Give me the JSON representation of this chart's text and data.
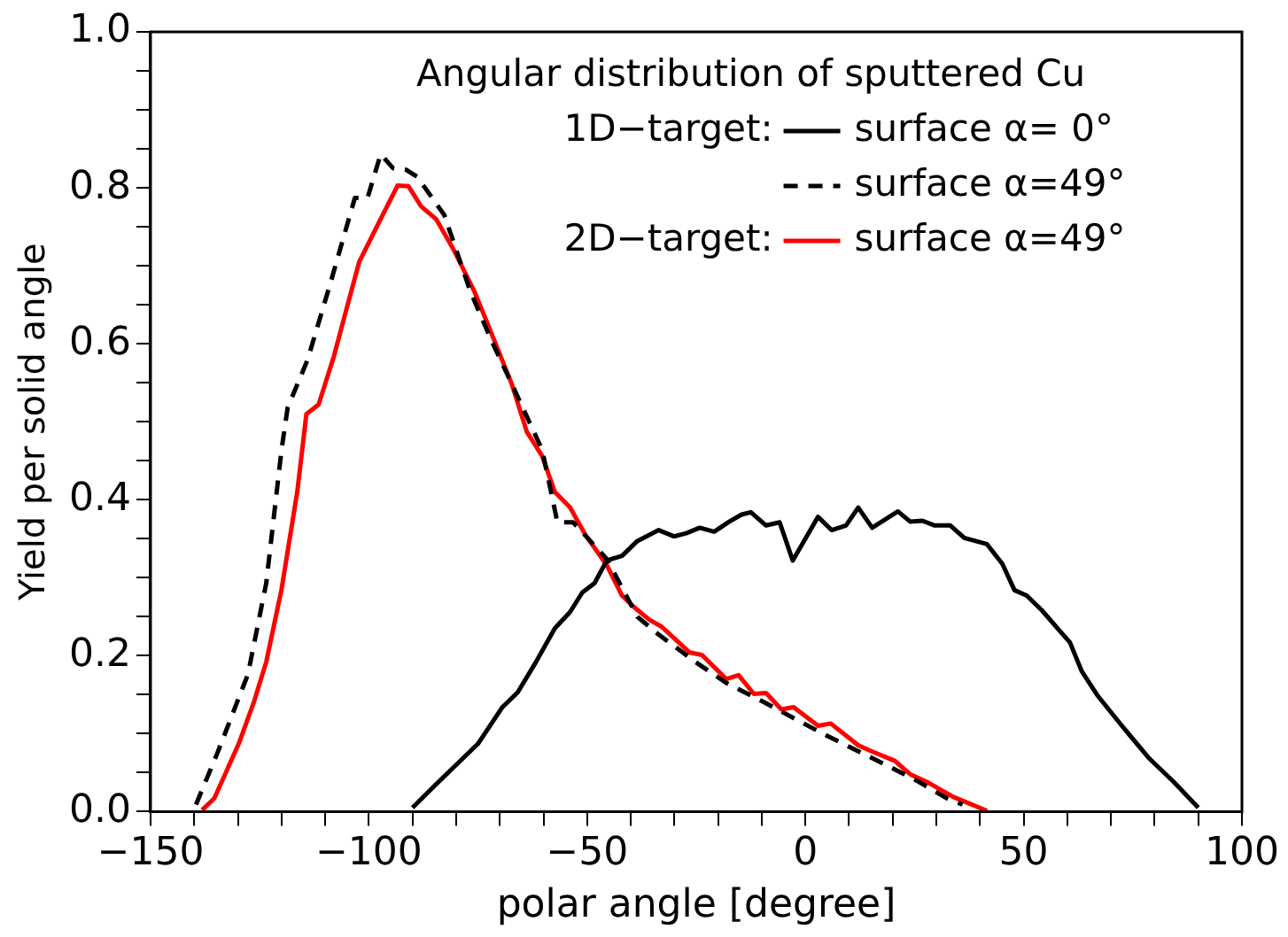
{
  "chart_data": {
    "type": "line",
    "title": "Angular distribution of sputtered Cu",
    "xlabel": "polar angle [degree]",
    "ylabel": "Yield per solid angle",
    "annotations": [
      "1D−target:",
      "2D−target:"
    ],
    "legend": "top right",
    "grid": false,
    "marker": "none",
    "xlim": [
      -150,
      100
    ],
    "xticks": [
      -150,
      {
        "value": -140,
        "label": null
      },
      {
        "value": -130,
        "label": null
      },
      {
        "value": -120,
        "label": null
      },
      {
        "value": -110,
        "label": null
      },
      -100,
      {
        "value": -90,
        "label": null
      },
      {
        "value": -80,
        "label": null
      },
      {
        "value": -70,
        "label": null
      },
      {
        "value": -60,
        "label": null
      },
      -50,
      {
        "value": -40,
        "label": null
      },
      {
        "value": -30,
        "label": null
      },
      {
        "value": -20,
        "label": null
      },
      {
        "value": -10,
        "label": null
      },
      0,
      {
        "value": 10,
        "label": null
      },
      {
        "value": 20,
        "label": null
      },
      {
        "value": 30,
        "label": null
      },
      {
        "value": 40,
        "label": null
      },
      50,
      {
        "value": 60,
        "label": null
      },
      {
        "value": 70,
        "label": null
      },
      {
        "value": 80,
        "label": null
      },
      {
        "value": 90,
        "label": null
      },
      100
    ],
    "ylim": [
      0,
      1
    ],
    "yticks": [
      {
        "value": 0,
        "label": "0.0"
      },
      {
        "value": 0.05,
        "label": null
      },
      {
        "value": 0.1,
        "label": null
      },
      {
        "value": 0.15,
        "label": null
      },
      {
        "value": 0.2,
        "label": "0.2"
      },
      {
        "value": 0.25,
        "label": null
      },
      {
        "value": 0.3,
        "label": null
      },
      {
        "value": 0.35,
        "label": null
      },
      {
        "value": 0.4,
        "label": "0.4"
      },
      {
        "value": 0.45,
        "label": null
      },
      {
        "value": 0.5,
        "label": null
      },
      {
        "value": 0.55,
        "label": null
      },
      {
        "value": 0.6,
        "label": "0.6"
      },
      {
        "value": 0.65,
        "label": null
      },
      {
        "value": 0.7,
        "label": null
      },
      {
        "value": 0.75,
        "label": null
      },
      {
        "value": 0.8,
        "label": "0.8"
      },
      {
        "value": 0.85,
        "label": null
      },
      {
        "value": 0.9,
        "label": null
      },
      {
        "value": 0.95,
        "label": null
      },
      {
        "value": 1,
        "label": "1.0"
      }
    ],
    "series": [
      {
        "name": "surface α= 0°",
        "color": "#000000",
        "line_style": "solid",
        "x": [
          -90,
          -84.8,
          -78.5,
          -75,
          -69.4,
          -65.9,
          -61.7,
          -57.4,
          -53.9,
          -51.1,
          -48.3,
          -45.5,
          -42,
          -38.5,
          -33.6,
          -30.1,
          -27.3,
          -24.2,
          -20.9,
          -17.4,
          -14.6,
          -12.5,
          -9,
          -5.9,
          -2.9,
          2.9,
          6,
          9.3,
          12.1,
          15.3,
          21.2,
          24,
          26.8,
          29.6,
          33.2,
          36.4,
          41.6,
          45.1,
          47.9,
          50.7,
          54.2,
          58.4,
          60.6,
          63.3,
          66.9,
          72.5,
          78.8,
          84.4,
          90
        ],
        "values": [
          0.005,
          0.034,
          0.068,
          0.087,
          0.134,
          0.153,
          0.192,
          0.235,
          0.256,
          0.281,
          0.293,
          0.322,
          0.328,
          0.347,
          0.361,
          0.353,
          0.357,
          0.364,
          0.359,
          0.372,
          0.381,
          0.384,
          0.367,
          0.371,
          0.322,
          0.378,
          0.361,
          0.367,
          0.39,
          0.364,
          0.385,
          0.372,
          0.373,
          0.367,
          0.367,
          0.351,
          0.343,
          0.318,
          0.284,
          0.277,
          0.258,
          0.231,
          0.217,
          0.18,
          0.149,
          0.11,
          0.068,
          0.038,
          0.005
        ]
      },
      {
        "name": "surface α=49°",
        "color": "#000000",
        "line_style": "dashed",
        "x": [
          -139.6,
          -134.7,
          -127.7,
          -123.5,
          -120,
          -118.6,
          -115.1,
          -114,
          -109,
          -103.2,
          -100.3,
          -97.3,
          -94.4,
          -91.4,
          -88.9,
          -82.7,
          -76.8,
          -71.9,
          -67.3,
          -60.3,
          -56.8,
          -53.2,
          -45.5,
          -38.5,
          -33.6,
          -25.2,
          -18.1,
          -9.7,
          4.3,
          18.4,
          25.4,
          32.4,
          36
        ],
        "values": [
          0.009,
          0.075,
          0.176,
          0.293,
          0.464,
          0.518,
          0.565,
          0.58,
          0.674,
          0.787,
          0.787,
          0.843,
          0.825,
          0.823,
          0.814,
          0.765,
          0.668,
          0.604,
          0.549,
          0.464,
          0.371,
          0.371,
          0.324,
          0.25,
          0.227,
          0.192,
          0.165,
          0.141,
          0.099,
          0.06,
          0.04,
          0.017,
          0.009
        ]
      },
      {
        "name": "surface α=49°",
        "color": "#ff0000",
        "line_style": "solid",
        "x": [
          -138.2,
          -135.4,
          -129.8,
          -126.3,
          -123.5,
          -120,
          -116.4,
          -114.3,
          -111.5,
          -108,
          -105.2,
          -102.2,
          -97.3,
          -93.4,
          -90.9,
          -88,
          -84.6,
          -80.7,
          -75.9,
          -72.9,
          -67.3,
          -63.8,
          -60.3,
          -57.4,
          -53.9,
          -50.4,
          -45.5,
          -42,
          -39.2,
          -35.7,
          -32.9,
          -29.4,
          -26.5,
          -23.7,
          -18.1,
          -15.3,
          -11.8,
          -9,
          -5.5,
          -2.7,
          2.9,
          5.8,
          12.1,
          14.9,
          20.5,
          24,
          28.2,
          33.8,
          41.6
        ],
        "values": [
          0.002,
          0.017,
          0.087,
          0.141,
          0.192,
          0.285,
          0.41,
          0.51,
          0.522,
          0.584,
          0.643,
          0.705,
          0.76,
          0.803,
          0.802,
          0.776,
          0.76,
          0.722,
          0.668,
          0.627,
          0.549,
          0.487,
          0.456,
          0.41,
          0.39,
          0.355,
          0.316,
          0.277,
          0.262,
          0.246,
          0.237,
          0.219,
          0.204,
          0.201,
          0.17,
          0.175,
          0.151,
          0.152,
          0.131,
          0.134,
          0.11,
          0.113,
          0.085,
          0.078,
          0.065,
          0.048,
          0.037,
          0.019,
          0.001
        ]
      }
    ]
  }
}
